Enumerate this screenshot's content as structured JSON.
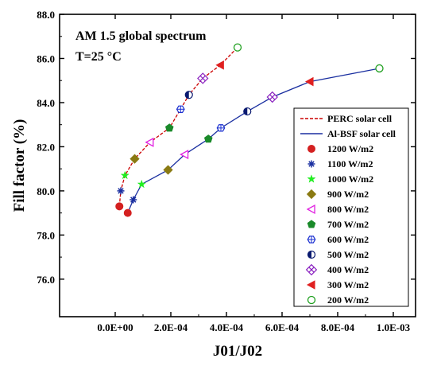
{
  "chart_data": {
    "type": "scatter",
    "xlabel": "J01/J02",
    "ylabel": "Fill factor (%)",
    "annotations": [
      "AM 1.5 global spectrum",
      "T=25 °C"
    ],
    "xlim": [
      -0.0002,
      0.00108
    ],
    "ylim": [
      74.3,
      88.0
    ],
    "x_ticks": [
      0,
      0.0002,
      0.0004,
      0.0006,
      0.0008,
      0.001
    ],
    "x_tick_labels": [
      "0.0E+00",
      "2.0E-04",
      "4.0E-04",
      "6.0E-04",
      "8.0E-04",
      "1.0E-03"
    ],
    "y_ticks": [
      76.0,
      78.0,
      80.0,
      82.0,
      84.0,
      86.0,
      88.0
    ],
    "y_tick_labels": [
      "76.0",
      "78.0",
      "80.0",
      "82.0",
      "84.0",
      "86.0",
      "88.0"
    ],
    "legend_position": "right",
    "series": [
      {
        "name": "PERC solar cell",
        "line_style": "dashed",
        "color": "#cc0000",
        "points": [
          {
            "x": 1.5e-05,
            "y": 79.3,
            "irradiance": "1200 W/m2"
          },
          {
            "x": 2e-05,
            "y": 80.0,
            "irradiance": "1100 W/m2"
          },
          {
            "x": 3.5e-05,
            "y": 80.7,
            "irradiance": "1000 W/m2"
          },
          {
            "x": 7e-05,
            "y": 81.45,
            "irradiance": "900 W/m2"
          },
          {
            "x": 0.000125,
            "y": 82.2,
            "irradiance": "800 W/m2"
          },
          {
            "x": 0.000195,
            "y": 82.85,
            "irradiance": "700 W/m2"
          },
          {
            "x": 0.000235,
            "y": 83.7,
            "irradiance": "600 W/m2"
          },
          {
            "x": 0.000265,
            "y": 84.35,
            "irradiance": "500 W/m2"
          },
          {
            "x": 0.000315,
            "y": 85.1,
            "irradiance": "400 W/m2"
          },
          {
            "x": 0.000378,
            "y": 85.7,
            "irradiance": "300 W/m2"
          },
          {
            "x": 0.00044,
            "y": 86.5,
            "irradiance": "200 W/m2"
          }
        ]
      },
      {
        "name": "Al-BSF solar cell",
        "line_style": "solid",
        "color": "#1a2fa0",
        "points": [
          {
            "x": 4.5e-05,
            "y": 79.0,
            "irradiance": "1200 W/m2"
          },
          {
            "x": 6.5e-05,
            "y": 79.6,
            "irradiance": "1100 W/m2"
          },
          {
            "x": 9.5e-05,
            "y": 80.3,
            "irradiance": "1000 W/m2"
          },
          {
            "x": 0.00019,
            "y": 80.95,
            "irradiance": "900 W/m2"
          },
          {
            "x": 0.00025,
            "y": 81.65,
            "irradiance": "800 W/m2"
          },
          {
            "x": 0.000335,
            "y": 82.35,
            "irradiance": "700 W/m2"
          },
          {
            "x": 0.00038,
            "y": 82.85,
            "irradiance": "600 W/m2"
          },
          {
            "x": 0.000475,
            "y": 83.6,
            "irradiance": "500 W/m2"
          },
          {
            "x": 0.000565,
            "y": 84.25,
            "irradiance": "400 W/m2"
          },
          {
            "x": 0.0007,
            "y": 84.95,
            "irradiance": "300 W/m2"
          },
          {
            "x": 0.00095,
            "y": 85.55,
            "irradiance": "200 W/m2"
          }
        ]
      }
    ],
    "markers": [
      {
        "label": "1200 W/m2",
        "shape": "circle-filled",
        "color": "#d42020"
      },
      {
        "label": "1100 W/m2",
        "shape": "asterisk",
        "color": "#1a2fa0"
      },
      {
        "label": "1000 W/m2",
        "shape": "star",
        "color": "#22ee22"
      },
      {
        "label": "900 W/m2",
        "shape": "diamond",
        "color": "#8a7a12"
      },
      {
        "label": "800 W/m2",
        "shape": "triangle-left-open",
        "color": "#e020e0"
      },
      {
        "label": "700 W/m2",
        "shape": "pentagon",
        "color": "#1a8a2a"
      },
      {
        "label": "600 W/m2",
        "shape": "hexagon-cross-open",
        "color": "#1a2fd0"
      },
      {
        "label": "500 W/m2",
        "shape": "circle-half",
        "color": "#0a1a70"
      },
      {
        "label": "400 W/m2",
        "shape": "square-x-open",
        "color": "#8a20c0"
      },
      {
        "label": "300 W/m2",
        "shape": "triangle-left-filled",
        "color": "#e02020"
      },
      {
        "label": "200 W/m2",
        "shape": "circle-open",
        "color": "#20a020"
      }
    ]
  }
}
